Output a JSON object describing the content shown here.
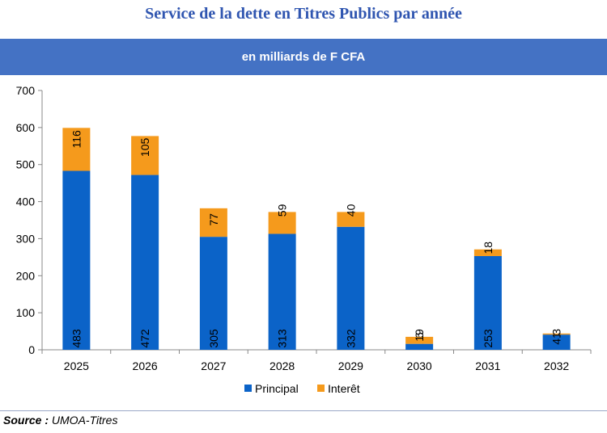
{
  "header": {
    "title": "Service de la dette en Titres Publics par année",
    "subtitle": "en milliards de F CFA"
  },
  "chart_data": {
    "type": "bar",
    "stacked": true,
    "categories": [
      "2025",
      "2026",
      "2027",
      "2028",
      "2029",
      "2030",
      "2031",
      "2032"
    ],
    "series": [
      {
        "name": "Principal",
        "color": "#0b63c8",
        "values": [
          483,
          472,
          305,
          313,
          332,
          16,
          253,
          41
        ],
        "labels": [
          "483",
          "472",
          "305",
          "313",
          "332",
          "16",
          "253",
          "41"
        ]
      },
      {
        "name": "Interêt",
        "color": "#f59a1c",
        "values": [
          116,
          105,
          77,
          59,
          40,
          19,
          18,
          3
        ],
        "labels": [
          "116",
          "105",
          "77",
          "59",
          "40",
          "19",
          "18",
          "3"
        ]
      }
    ],
    "yticks": [
      "0",
      "100",
      "200",
      "300",
      "400",
      "500",
      "600",
      "700"
    ],
    "ylim": [
      0,
      700
    ],
    "grid": false,
    "legend_position": "bottom"
  },
  "footer": {
    "source_label": "Source :",
    "source_value": "UMOA-Titres"
  }
}
